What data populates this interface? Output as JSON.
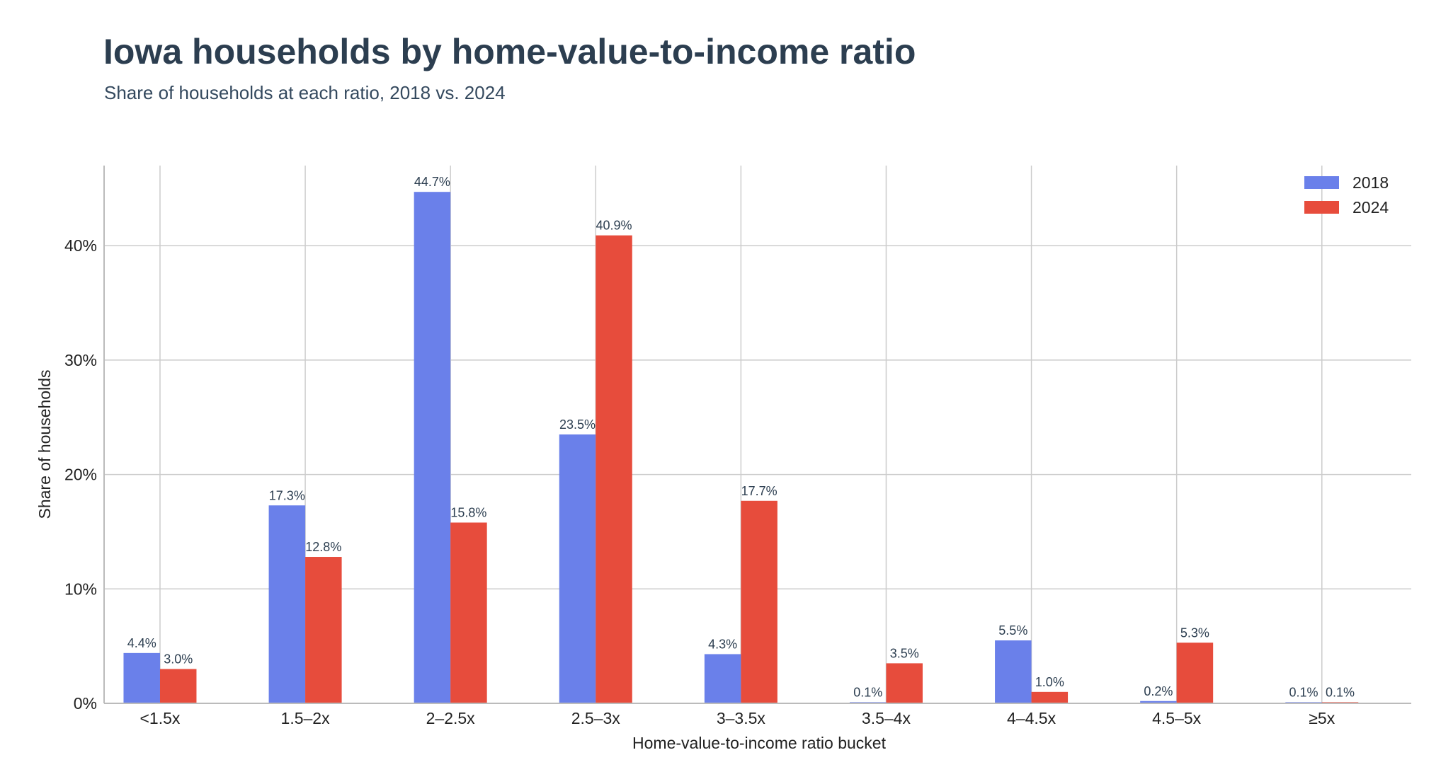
{
  "title": "Iowa households by home-value-to-income ratio",
  "subtitle": "Share of households at each ratio, 2018 vs. 2024",
  "chart_data": {
    "type": "bar",
    "title": "Iowa households by home-value-to-income ratio",
    "subtitle": "Share of households at each ratio, 2018 vs. 2024",
    "xlabel": "Home-value-to-income ratio bucket",
    "ylabel": "Share of households",
    "categories": [
      "<1.5x",
      "1.5–2x",
      "2–2.5x",
      "2.5–3x",
      "3–3.5x",
      "3.5–4x",
      "4–4.5x",
      "4.5–5x",
      "≥5x"
    ],
    "series": [
      {
        "name": "2018",
        "color": "#6a80ea",
        "values": [
          4.4,
          17.3,
          44.7,
          23.5,
          4.3,
          0.1,
          5.5,
          0.2,
          0.1
        ],
        "labels": [
          "4.4%",
          "17.3%",
          "44.7%",
          "23.5%",
          "4.3%",
          "0.1%",
          "5.5%",
          "0.2%",
          "0.1%"
        ]
      },
      {
        "name": "2024",
        "color": "#e74c3c",
        "values": [
          3.0,
          12.8,
          15.8,
          40.9,
          17.7,
          3.5,
          1.0,
          5.3,
          0.1
        ],
        "labels": [
          "3.0%",
          "12.8%",
          "15.8%",
          "40.9%",
          "17.7%",
          "3.5%",
          "1.0%",
          "5.3%",
          "0.1%"
        ]
      }
    ],
    "yticks": [
      0,
      10,
      20,
      30,
      40
    ],
    "ytick_labels": [
      "0%",
      "10%",
      "20%",
      "30%",
      "40%"
    ],
    "ylim": [
      0,
      47
    ],
    "grid": true,
    "legend_position": "top-right"
  }
}
